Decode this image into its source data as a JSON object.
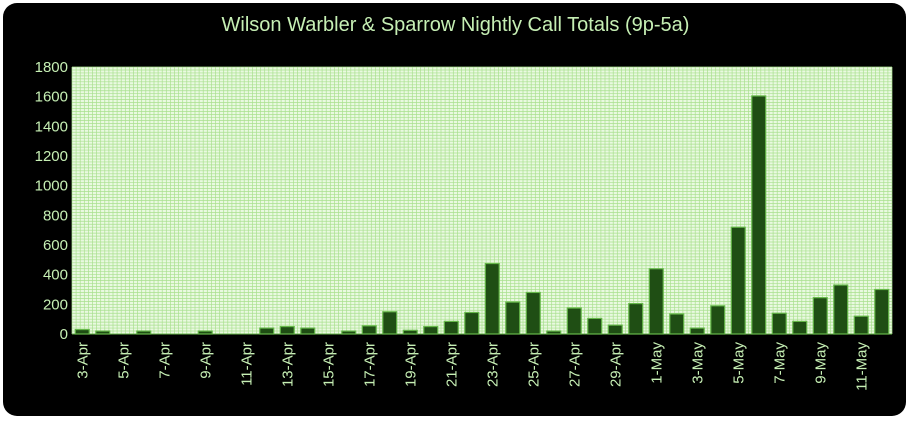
{
  "colors": {
    "background": "#000000",
    "plot_area": "#e9f9e0",
    "grid": "#a9e08e",
    "bar_fill": "#1f4e14",
    "bar_edge": "#66b84a",
    "text": "#c6efb4"
  },
  "chart_data": {
    "type": "bar",
    "title": "Wilson Warbler & Sparrow Nightly Call Totals (9p-5a)",
    "xlabel": "",
    "ylabel": "",
    "ylim": [
      0,
      1800
    ],
    "yticks": [
      0,
      200,
      400,
      600,
      800,
      1000,
      1200,
      1400,
      1600,
      1800
    ],
    "grid": true,
    "legend": "none",
    "categories": [
      "3-Apr",
      "4-Apr",
      "5-Apr",
      "6-Apr",
      "7-Apr",
      "8-Apr",
      "9-Apr",
      "10-Apr",
      "11-Apr",
      "12-Apr",
      "13-Apr",
      "14-Apr",
      "15-Apr",
      "16-Apr",
      "17-Apr",
      "18-Apr",
      "19-Apr",
      "20-Apr",
      "21-Apr",
      "22-Apr",
      "23-Apr",
      "24-Apr",
      "25-Apr",
      "26-Apr",
      "27-Apr",
      "28-Apr",
      "29-Apr",
      "30-Apr",
      "1-May",
      "2-May",
      "3-May",
      "4-May",
      "5-May",
      "6-May",
      "7-May",
      "8-May",
      "9-May",
      "10-May",
      "11-May",
      "12-May"
    ],
    "tick_labels": [
      "3-Apr",
      "5-Apr",
      "7-Apr",
      "9-Apr",
      "11-Apr",
      "13-Apr",
      "15-Apr",
      "17-Apr",
      "19-Apr",
      "21-Apr",
      "23-Apr",
      "25-Apr",
      "27-Apr",
      "29-Apr",
      "1-May",
      "3-May",
      "5-May",
      "7-May",
      "9-May",
      "11-May"
    ],
    "values": [
      30,
      20,
      0,
      20,
      0,
      0,
      20,
      0,
      0,
      40,
      50,
      40,
      0,
      20,
      55,
      150,
      25,
      50,
      85,
      145,
      475,
      215,
      280,
      20,
      175,
      105,
      60,
      205,
      440,
      135,
      40,
      190,
      720,
      1605,
      140,
      85,
      245,
      330,
      120,
      300
    ]
  }
}
